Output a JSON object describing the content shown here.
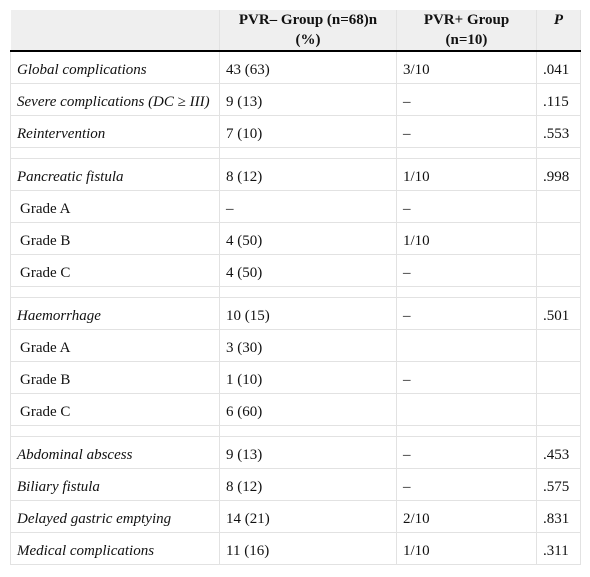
{
  "table": {
    "header": [
      "PVR– Group (n=68)n (%)",
      "PVR+ Group (n=10)",
      "P"
    ],
    "rows": [
      [
        "Global complications",
        "43 (63)",
        "3/10",
        ".041"
      ],
      [
        "Severe complications (DC ≥ III)",
        "9 (13)",
        "–",
        ".115"
      ],
      [
        "Reintervention",
        "7 (10)",
        "–",
        ".553"
      ],
      [
        "Pancreatic fistula",
        "8 (12)",
        "1/10",
        ".998"
      ],
      [
        "Grade A",
        "–",
        "–"
      ],
      [
        "Grade B",
        "4 (50)",
        "1/10"
      ],
      [
        "Grade C",
        "4 (50)",
        "–"
      ],
      [
        "Haemorrhage",
        "10 (15)",
        "–",
        ".501"
      ],
      [
        "Grade A",
        "3 (30)"
      ],
      [
        "Grade B",
        "1 (10)",
        "–"
      ],
      [
        "Grade C",
        "6 (60)"
      ],
      [
        "Abdominal abscess",
        "9 (13)",
        "–",
        ".453"
      ],
      [
        "Biliary fistula",
        "8 (12)",
        "–",
        ".575"
      ],
      [
        "Delayed gastric emptying",
        "14 (21)",
        "2/10",
        ".831"
      ],
      [
        "Medical complications",
        "11 (16)",
        "1/10",
        ".311"
      ]
    ]
  }
}
